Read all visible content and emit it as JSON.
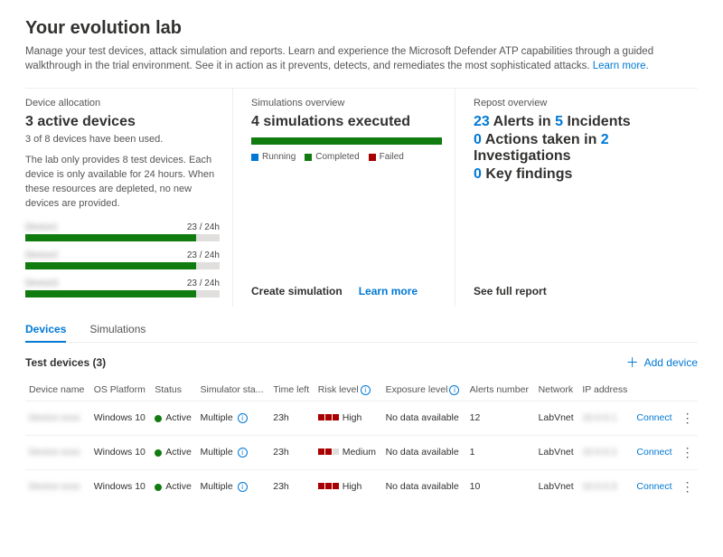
{
  "page": {
    "title": "Your evolution lab",
    "subtitle": "Manage your test devices, attack simulation and reports. Learn and experience the Microsoft Defender ATP capabilities through a guided walkthrough in the trial environment. See it in action as it prevents, detects, and remediates the most sophisticated attacks.",
    "learn_more": "Learn more."
  },
  "allocation": {
    "title": "Device allocation",
    "headline": "3 active devices",
    "sub": "3 of 8 devices have been used.",
    "note": "The lab only provides 8 test devices. Each device is only available for 24 hours. When these resources are depleted, no new devices are provided.",
    "bars": [
      {
        "label": "Device1",
        "value": "23 / 24h",
        "pct": 88
      },
      {
        "label": "Device2",
        "value": "23 / 24h",
        "pct": 88
      },
      {
        "label": "Device3",
        "value": "23 / 24h",
        "pct": 88
      }
    ],
    "colors": {
      "fill": "#107c10",
      "track": "#e1dfdd"
    }
  },
  "simulations": {
    "title": "Simulations overview",
    "headline": "4 simulations executed",
    "bar_pct": 100,
    "legend": [
      {
        "label": "Running",
        "color": "#0078d4"
      },
      {
        "label": "Completed",
        "color": "#107c10"
      },
      {
        "label": "Failed",
        "color": "#a80000"
      }
    ],
    "actions": {
      "create": "Create simulation",
      "learn": "Learn more"
    }
  },
  "report": {
    "title": "Repost overview",
    "lines": [
      {
        "n1": "23",
        "t1": " Alerts in ",
        "n2": "5",
        "t2": " Incidents"
      },
      {
        "n1": "0",
        "t1": " Actions taken in ",
        "n2": "2",
        "t2": " Investigations"
      },
      {
        "n1": "0",
        "t1": " Key findings",
        "n2": "",
        "t2": ""
      }
    ],
    "action": "See full report"
  },
  "tabs": [
    {
      "label": "Devices",
      "active": true
    },
    {
      "label": "Simulations",
      "active": false
    }
  ],
  "list": {
    "title": "Test devices (3)",
    "add_label": "Add device",
    "columns": [
      "Device name",
      "OS Platform",
      "Status",
      "Simulator sta...",
      "Time left",
      "Risk level",
      "Exposure level",
      "Alerts number",
      "Network",
      "IP address",
      "",
      ""
    ],
    "info_cols": [
      5,
      6
    ],
    "rows": [
      {
        "name": "Device-xxxx",
        "os": "Windows 10",
        "status": "Active",
        "sim": "Multiple",
        "time": "23h",
        "risk": "High",
        "risk_color": "#a80000",
        "risk_squares": 3,
        "exposure": "No data available",
        "alerts": "12",
        "network": "LabVnet",
        "ip": "10.0.0.1",
        "connect": "Connect"
      },
      {
        "name": "Device-xxxx",
        "os": "Windows 10",
        "status": "Active",
        "sim": "Multiple",
        "time": "23h",
        "risk": "Medium",
        "risk_color": "#a80000",
        "risk_squares": 2,
        "exposure": "No data available",
        "alerts": "1",
        "network": "LabVnet",
        "ip": "10.0.0.2",
        "connect": "Connect"
      },
      {
        "name": "Device-xxxx",
        "os": "Windows 10",
        "status": "Active",
        "sim": "Multiple",
        "time": "23h",
        "risk": "High",
        "risk_color": "#a80000",
        "risk_squares": 3,
        "exposure": "No data available",
        "alerts": "10",
        "network": "LabVnet",
        "ip": "10.0.0.3",
        "connect": "Connect"
      }
    ]
  }
}
